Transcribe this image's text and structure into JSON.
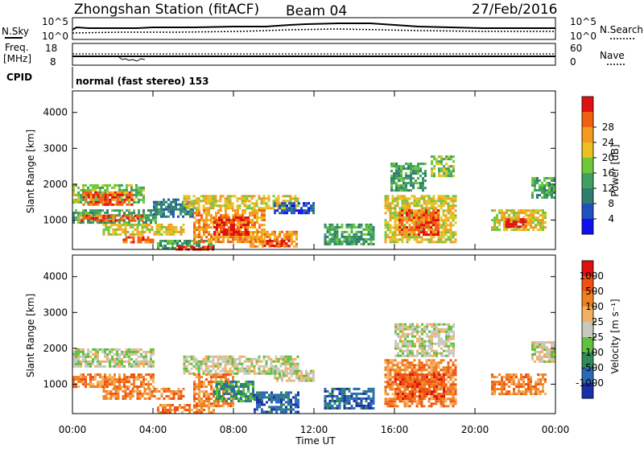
{
  "header": {
    "station": "Zhongshan Station (fitACF)",
    "beam": "Beam 04",
    "date": "27/Feb/2016"
  },
  "top_panels": {
    "nsky_label": "N.Sky",
    "nsky_ticks": [
      "10^5",
      "10^0"
    ],
    "nsearch_label": "N.Search",
    "nsearch_ticks": [
      "10^5",
      "10^0"
    ],
    "freq_label": "Freq.",
    "freq_unit": "[MHz]",
    "freq_ticks": [
      "18",
      "8"
    ],
    "nave_label": "Nave",
    "nave_ticks": [
      "60",
      "0"
    ],
    "cpid_label": "CPID",
    "cpid_text": "normal (fast stereo) 153"
  },
  "chart_data": [
    {
      "type": "heatmap",
      "name": "power",
      "ylabel": "Slant Range [km]",
      "xlabel": "Time UT",
      "x_ticks": [
        "00:00",
        "04:00",
        "08:00",
        "12:00",
        "16:00",
        "20:00",
        "00:00"
      ],
      "x_range_hours": [
        0,
        24
      ],
      "y_ticks": [
        "1000",
        "2000",
        "3000",
        "4000"
      ],
      "ylim": [
        180,
        4600
      ],
      "colorbar": {
        "label": "Power [dB]",
        "ticks": [
          "4",
          "8",
          "12",
          "16",
          "20",
          "24",
          "28"
        ],
        "colors": [
          "#1010ee",
          "#2050c0",
          "#2e7d6e",
          "#3fa060",
          "#6ec83a",
          "#e8c020",
          "#f49a20",
          "#f06010",
          "#e01010"
        ]
      },
      "regions": [
        {
          "t0": 0.0,
          "t1": 3.6,
          "r0": 1500,
          "r1": 2000,
          "c": 4
        },
        {
          "t0": 0.5,
          "t1": 3.0,
          "r0": 1400,
          "r1": 1800,
          "c": 7
        },
        {
          "t0": 0.0,
          "t1": 4.2,
          "r0": 900,
          "r1": 1300,
          "c": 3
        },
        {
          "t0": 0.3,
          "t1": 3.5,
          "r0": 950,
          "r1": 1150,
          "c": 7
        },
        {
          "t0": 1.5,
          "t1": 5.5,
          "r0": 600,
          "r1": 900,
          "c": 5
        },
        {
          "t0": 2.5,
          "t1": 4.0,
          "r0": 350,
          "r1": 550,
          "c": 7
        },
        {
          "t0": 4.2,
          "t1": 7.0,
          "r0": 200,
          "r1": 450,
          "c": 3
        },
        {
          "t0": 4.0,
          "t1": 6.0,
          "r0": 1100,
          "r1": 1600,
          "c": 2
        },
        {
          "t0": 5.5,
          "t1": 11.2,
          "r0": 1300,
          "r1": 1700,
          "c": 5
        },
        {
          "t0": 6.0,
          "t1": 9.5,
          "r0": 400,
          "r1": 1300,
          "c": 6
        },
        {
          "t0": 7.0,
          "t1": 8.8,
          "r0": 600,
          "r1": 1100,
          "c": 8
        },
        {
          "t0": 8.8,
          "t1": 11.2,
          "r0": 250,
          "r1": 700,
          "c": 6
        },
        {
          "t0": 9.5,
          "t1": 10.8,
          "r0": 250,
          "r1": 450,
          "c": 8
        },
        {
          "t0": 5.0,
          "t1": 7.0,
          "r0": 180,
          "r1": 280,
          "c": 8
        },
        {
          "t0": 10.0,
          "t1": 12.0,
          "r0": 1200,
          "r1": 1500,
          "c": 1
        },
        {
          "t0": 12.5,
          "t1": 15.0,
          "r0": 300,
          "r1": 900,
          "c": 3
        },
        {
          "t0": 15.5,
          "t1": 19.0,
          "r0": 400,
          "r1": 1700,
          "c": 5
        },
        {
          "t0": 16.2,
          "t1": 18.2,
          "r0": 600,
          "r1": 1300,
          "c": 7
        },
        {
          "t0": 15.8,
          "t1": 17.5,
          "r0": 1800,
          "r1": 2600,
          "c": 3
        },
        {
          "t0": 17.8,
          "t1": 19.0,
          "r0": 2200,
          "r1": 2800,
          "c": 4
        },
        {
          "t0": 20.8,
          "t1": 23.5,
          "r0": 700,
          "r1": 1300,
          "c": 5
        },
        {
          "t0": 21.5,
          "t1": 22.5,
          "r0": 800,
          "r1": 1050,
          "c": 8
        },
        {
          "t0": 22.8,
          "t1": 24.0,
          "r0": 1600,
          "r1": 2200,
          "c": 3
        }
      ]
    },
    {
      "type": "heatmap",
      "name": "velocity",
      "ylabel": "Slant Range [km]",
      "xlabel": "Time UT",
      "x_ticks": [
        "00:00",
        "04:00",
        "08:00",
        "12:00",
        "16:00",
        "20:00",
        "00:00"
      ],
      "x_range_hours": [
        0,
        24
      ],
      "y_ticks": [
        "1000",
        "2000",
        "3000",
        "4000"
      ],
      "ylim": [
        180,
        4600
      ],
      "colorbar": {
        "label": "Velocity [m s⁻¹]",
        "ticks": [
          "1000",
          "500",
          "100",
          "25",
          "-25",
          "-100",
          "-500",
          "-1000"
        ],
        "colors": [
          "#1a2fa8",
          "#2a68b8",
          "#2e8a5a",
          "#60c040",
          "#c8c8c0",
          "#f4b060",
          "#f08020",
          "#f05010",
          "#e01010"
        ]
      },
      "regions": [
        {
          "t0": 0.0,
          "t1": 4.0,
          "r0": 1500,
          "r1": 2000,
          "c": 4
        },
        {
          "t0": 0.0,
          "t1": 4.0,
          "r0": 900,
          "r1": 1300,
          "c": 6
        },
        {
          "t0": 1.5,
          "t1": 5.5,
          "r0": 600,
          "r1": 900,
          "c": 6
        },
        {
          "t0": 4.2,
          "t1": 7.0,
          "r0": 200,
          "r1": 450,
          "c": 6
        },
        {
          "t0": 5.5,
          "t1": 11.2,
          "r0": 1300,
          "r1": 1800,
          "c": 4
        },
        {
          "t0": 6.0,
          "t1": 8.0,
          "r0": 400,
          "r1": 1300,
          "c": 6
        },
        {
          "t0": 7.0,
          "t1": 9.0,
          "r0": 500,
          "r1": 1100,
          "c": 2
        },
        {
          "t0": 9.0,
          "t1": 11.2,
          "r0": 250,
          "r1": 800,
          "c": 1
        },
        {
          "t0": 10.0,
          "t1": 12.0,
          "r0": 1100,
          "r1": 1400,
          "c": 4
        },
        {
          "t0": 12.5,
          "t1": 15.0,
          "r0": 300,
          "r1": 900,
          "c": 1
        },
        {
          "t0": 15.5,
          "t1": 19.0,
          "r0": 400,
          "r1": 1700,
          "c": 6
        },
        {
          "t0": 16.0,
          "t1": 18.5,
          "r0": 600,
          "r1": 1300,
          "c": 7
        },
        {
          "t0": 16.0,
          "t1": 19.0,
          "r0": 1800,
          "r1": 2700,
          "c": 4
        },
        {
          "t0": 20.8,
          "t1": 23.5,
          "r0": 700,
          "r1": 1300,
          "c": 6
        },
        {
          "t0": 22.8,
          "t1": 24.0,
          "r0": 1600,
          "r1": 2200,
          "c": 4
        }
      ]
    }
  ]
}
